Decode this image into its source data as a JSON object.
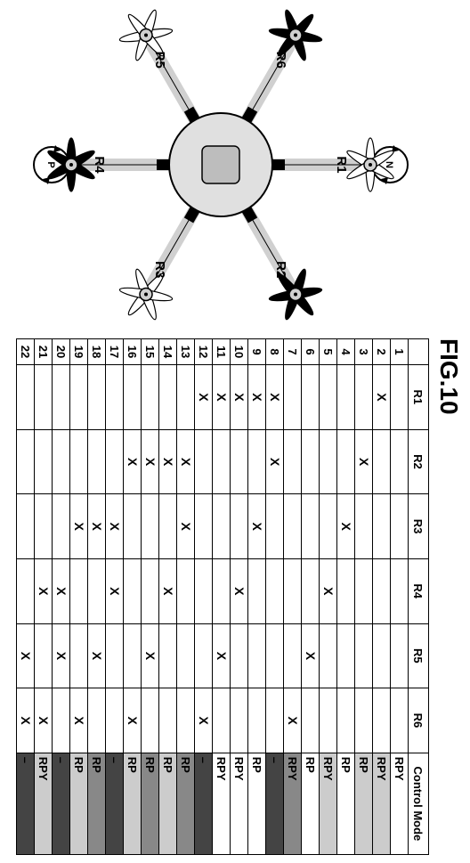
{
  "figure_title": "FIG.10",
  "diagram": {
    "rotor_labels": [
      "R1",
      "R2",
      "R3",
      "R4",
      "R5",
      "R6"
    ],
    "rotor_positions_deg": [
      270,
      330,
      30,
      90,
      150,
      210
    ],
    "rotor_blade_colors": [
      "#ffffff",
      "#000000",
      "#ffffff",
      "#000000",
      "#ffffff",
      "#000000"
    ],
    "arm_length": 110,
    "hub_radius": 58,
    "hub_square_size": 42,
    "top_circle_label": "N",
    "bottom_circle_label": "P",
    "arm_color": "#d0d0d0",
    "hub_color": "#e0e0e0",
    "hub_square_color": "#bdbdbd"
  },
  "colors": {
    "mode_light": "#cccccc",
    "mode_dark": "#888888",
    "mode_black": "#444444",
    "white": "#ffffff"
  },
  "table": {
    "headers": [
      "",
      "R1",
      "R2",
      "R3",
      "R4",
      "R5",
      "R6",
      "Control Mode"
    ],
    "mark": "X",
    "rows": [
      {
        "idx": 1,
        "r": [
          0,
          0,
          0,
          0,
          0,
          0
        ],
        "mode": "RPY",
        "shade": "white"
      },
      {
        "idx": 2,
        "r": [
          1,
          0,
          0,
          0,
          0,
          0
        ],
        "mode": "RPY",
        "shade": "mode_light"
      },
      {
        "idx": 3,
        "r": [
          0,
          1,
          0,
          0,
          0,
          0
        ],
        "mode": "RP",
        "shade": "mode_light"
      },
      {
        "idx": 4,
        "r": [
          0,
          0,
          1,
          0,
          0,
          0
        ],
        "mode": "RP",
        "shade": "white"
      },
      {
        "idx": 5,
        "r": [
          0,
          0,
          0,
          1,
          0,
          0
        ],
        "mode": "RPY",
        "shade": "mode_light"
      },
      {
        "idx": 6,
        "r": [
          0,
          0,
          0,
          0,
          1,
          0
        ],
        "mode": "RP",
        "shade": "white"
      },
      {
        "idx": 7,
        "r": [
          0,
          0,
          0,
          0,
          0,
          1
        ],
        "mode": "RPY",
        "shade": "mode_dark"
      },
      {
        "idx": 8,
        "r": [
          1,
          1,
          0,
          0,
          0,
          0
        ],
        "mode": "–",
        "shade": "mode_black"
      },
      {
        "idx": 9,
        "r": [
          1,
          0,
          1,
          0,
          0,
          0
        ],
        "mode": "RP",
        "shade": "white"
      },
      {
        "idx": 10,
        "r": [
          1,
          0,
          0,
          1,
          0,
          0
        ],
        "mode": "RPY",
        "shade": "white"
      },
      {
        "idx": 11,
        "r": [
          1,
          0,
          0,
          0,
          1,
          0
        ],
        "mode": "RPY",
        "shade": "white"
      },
      {
        "idx": 12,
        "r": [
          1,
          0,
          0,
          0,
          0,
          1
        ],
        "mode": "–",
        "shade": "mode_black"
      },
      {
        "idx": 13,
        "r": [
          0,
          1,
          1,
          0,
          0,
          0
        ],
        "mode": "RP",
        "shade": "mode_dark"
      },
      {
        "idx": 14,
        "r": [
          0,
          1,
          0,
          1,
          0,
          0
        ],
        "mode": "RP",
        "shade": "mode_light"
      },
      {
        "idx": 15,
        "r": [
          0,
          1,
          0,
          0,
          1,
          0
        ],
        "mode": "RP",
        "shade": "mode_dark"
      },
      {
        "idx": 16,
        "r": [
          0,
          1,
          0,
          0,
          0,
          1
        ],
        "mode": "RP",
        "shade": "mode_light"
      },
      {
        "idx": 17,
        "r": [
          0,
          0,
          1,
          1,
          0,
          0
        ],
        "mode": "–",
        "shade": "mode_black"
      },
      {
        "idx": 18,
        "r": [
          0,
          0,
          1,
          0,
          1,
          0
        ],
        "mode": "RP",
        "shade": "mode_dark"
      },
      {
        "idx": 19,
        "r": [
          0,
          0,
          1,
          0,
          0,
          1
        ],
        "mode": "RP",
        "shade": "mode_light"
      },
      {
        "idx": 20,
        "r": [
          0,
          0,
          0,
          1,
          1,
          0
        ],
        "mode": "–",
        "shade": "mode_black"
      },
      {
        "idx": 21,
        "r": [
          0,
          0,
          0,
          1,
          0,
          1
        ],
        "mode": "RPY",
        "shade": "mode_light"
      },
      {
        "idx": 22,
        "r": [
          0,
          0,
          0,
          0,
          1,
          1
        ],
        "mode": "–",
        "shade": "mode_black"
      }
    ]
  }
}
